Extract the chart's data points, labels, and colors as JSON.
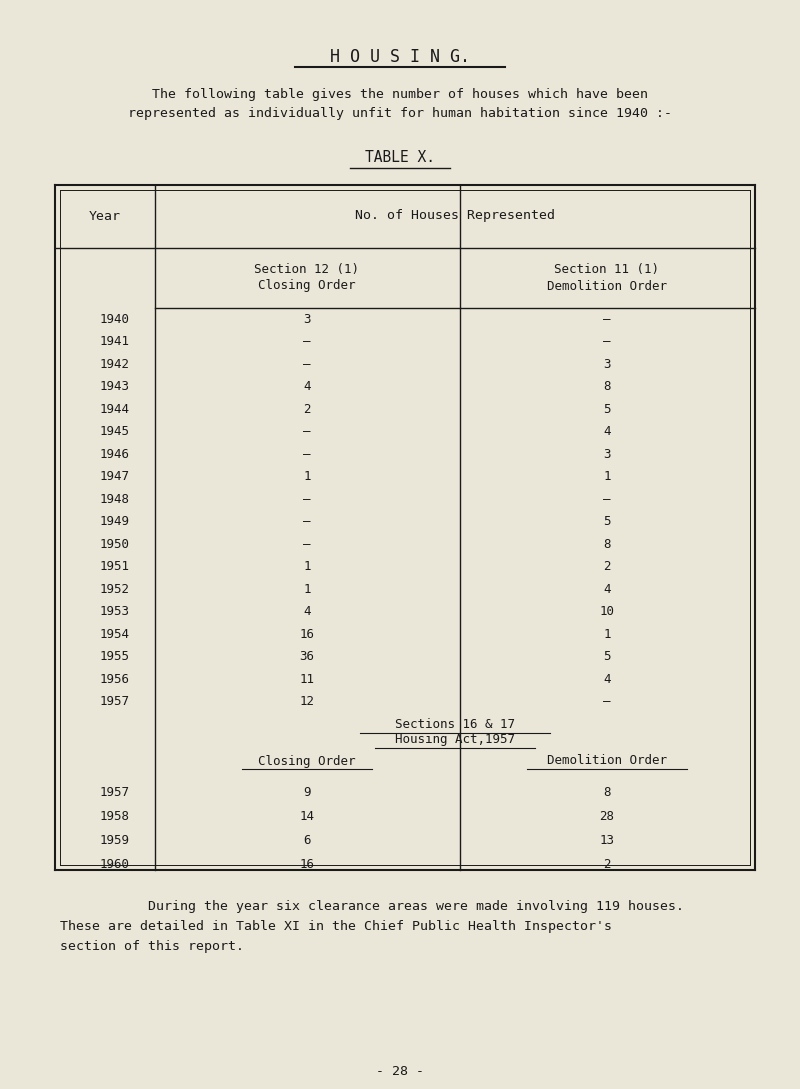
{
  "title": "H O U S I N G.",
  "subtitle_line1": "The following table gives the number of houses which have been",
  "subtitle_line2": "represented as individually unfit for human habitation since 1940 :-",
  "table_title": "TABLE X.",
  "header_year": "Year",
  "header_no_houses": "No. of Houses Represented",
  "header_sec12_line1": "Section 12 (1)",
  "header_sec12_line2": "Closing Order",
  "header_sec11_line1": "Section 11 (1)",
  "header_sec11_line2": "Demolition Order",
  "part1_years": [
    "1940",
    "1941",
    "1942",
    "1943",
    "1944",
    "1945",
    "1946",
    "1947",
    "1948",
    "1949",
    "1950",
    "1951",
    "1952",
    "1953",
    "1954",
    "1955",
    "1956",
    "1957"
  ],
  "part1_col1": [
    "3",
    "—",
    "—",
    "4",
    "2",
    "—",
    "—",
    "1",
    "—",
    "—",
    "—",
    "1",
    "1",
    "4",
    "16",
    "36",
    "11",
    "12"
  ],
  "part1_col2": [
    "—",
    "—",
    "3",
    "8",
    "5",
    "4",
    "3",
    "1",
    "—",
    "5",
    "8",
    "2",
    "4",
    "10",
    "1",
    "5",
    "4",
    "—"
  ],
  "sections_header_line1": "Sections 16 & 17",
  "sections_header_line2": "Housing Act,1957",
  "header_closing": "Closing Order",
  "header_demolition": "Demolition Order",
  "part2_years": [
    "1957",
    "1958",
    "1959",
    "1960"
  ],
  "part2_col1": [
    "9",
    "14",
    "6",
    "16"
  ],
  "part2_col2": [
    "8",
    "28",
    "13",
    "2"
  ],
  "footer_line1": "    During the year six clearance areas were made involving 119 houses.",
  "footer_line2": "These are detailed in Table XI in the Chief Public Health Inspector's",
  "footer_line3": "section of this report.",
  "page_number": "- 28 -",
  "bg_color": "#eae6d8",
  "text_color": "#1a1a1a",
  "font_size": 9.5,
  "title_font_size": 12
}
